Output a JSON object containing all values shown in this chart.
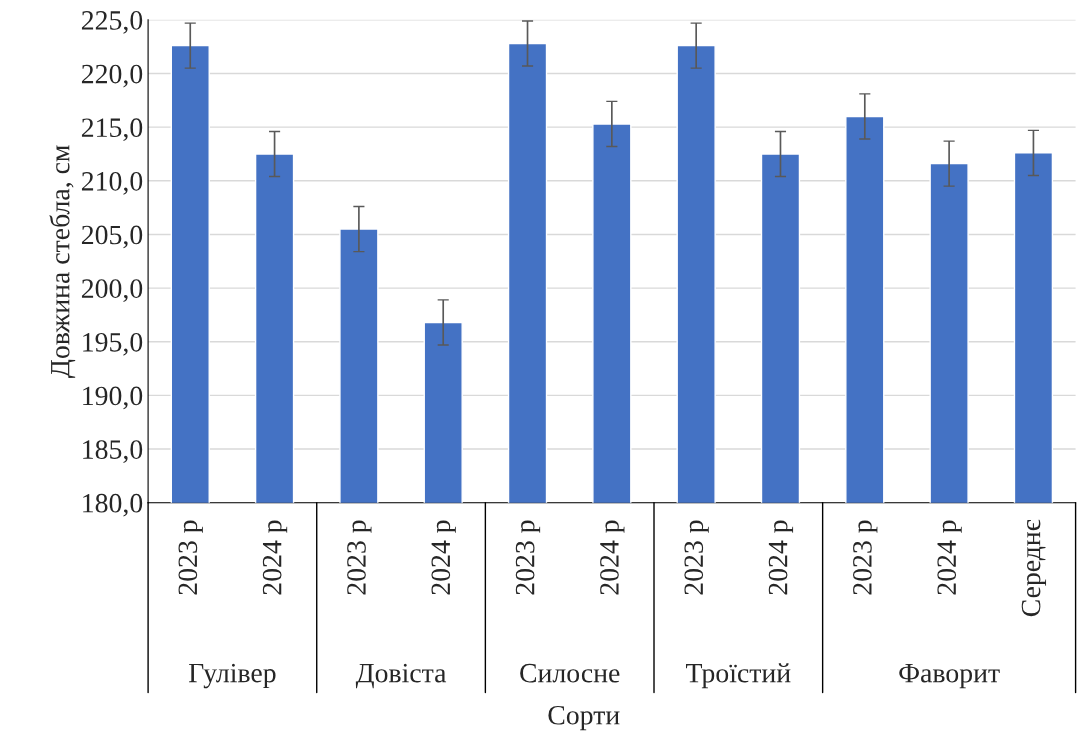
{
  "chart_data": {
    "type": "bar",
    "xlabel": "Сорти",
    "ylabel": "Довжина стебла, см",
    "categories": [
      "2023 р",
      "2024 р",
      "2023 р",
      "2024 р",
      "2023 р",
      "2024 р",
      "2023 р",
      "2024 р",
      "2023 р",
      "2024 р",
      "Середнє"
    ],
    "values": [
      222.6,
      212.5,
      205.5,
      196.8,
      222.8,
      215.3,
      222.6,
      212.5,
      216.0,
      211.6,
      212.6
    ],
    "errors": [
      2.1,
      2.1,
      2.1,
      2.1,
      2.1,
      2.1,
      2.1,
      2.1,
      2.1,
      2.1,
      2.1
    ],
    "color": "#4472c4",
    "ylim": [
      180,
      225
    ],
    "yticks": [
      {
        "value": 180,
        "label": "180,0"
      },
      {
        "value": 185,
        "label": "185,0"
      },
      {
        "value": 190,
        "label": "190,0"
      },
      {
        "value": 195,
        "label": "195,0"
      },
      {
        "value": 200,
        "label": "200,0"
      },
      {
        "value": 205,
        "label": "205,0"
      },
      {
        "value": 210,
        "label": "210,0"
      },
      {
        "value": 215,
        "label": "215,0"
      },
      {
        "value": 220,
        "label": "220,0"
      },
      {
        "value": 225,
        "label": "225,0"
      }
    ],
    "grid": "y",
    "annotations": [
      "Гулівер",
      "Довіста",
      "Силосне",
      "Троїстий",
      "Фаворит"
    ]
  }
}
